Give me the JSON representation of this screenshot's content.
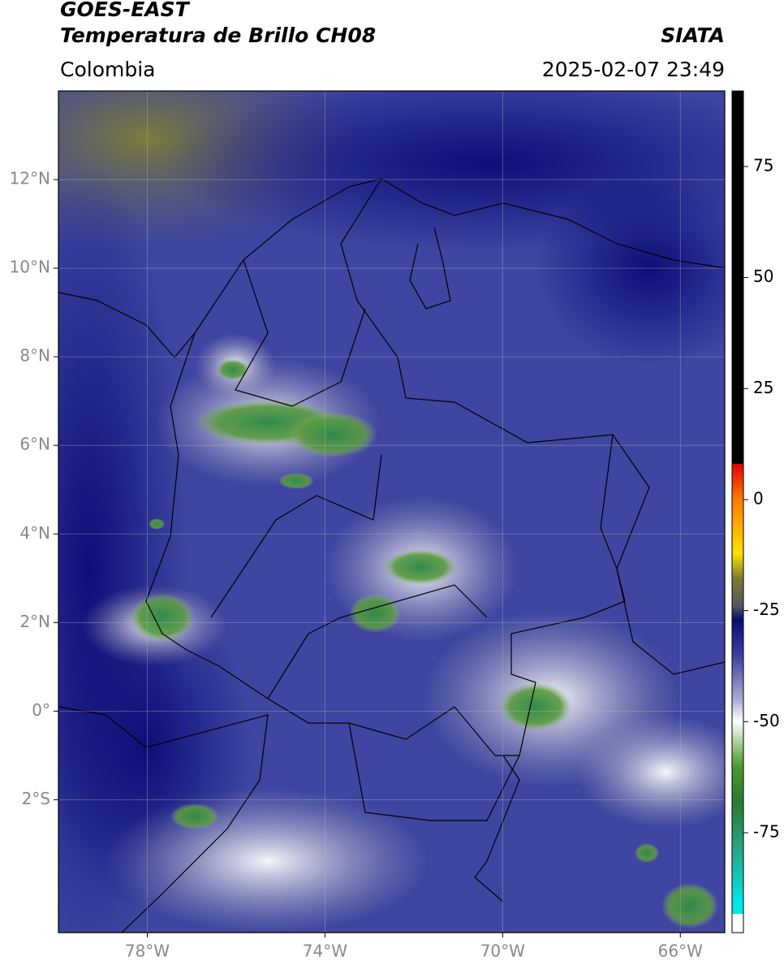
{
  "header": {
    "title_line1": "GOES-EAST",
    "title_line2": "Temperatura de Brillo CH08",
    "source": "SIATA",
    "region": "Colombia",
    "timestamp": "2025-02-07 23:49"
  },
  "map": {
    "lon_range": [
      -80,
      -65
    ],
    "lat_range": [
      -5,
      14
    ],
    "lon_ticks": [
      {
        "value": -78,
        "label": "78°W"
      },
      {
        "value": -74,
        "label": "74°W"
      },
      {
        "value": -70,
        "label": "70°W"
      },
      {
        "value": -66,
        "label": "66°W"
      }
    ],
    "lat_ticks": [
      {
        "value": -2,
        "label": "2°S"
      },
      {
        "value": 0,
        "label": "0°"
      },
      {
        "value": 2,
        "label": "2°N"
      },
      {
        "value": 4,
        "label": "4°N"
      },
      {
        "value": 6,
        "label": "6°N"
      },
      {
        "value": 8,
        "label": "8°N"
      },
      {
        "value": 10,
        "label": "10°N"
      },
      {
        "value": 12,
        "label": "12°N"
      }
    ],
    "grid": true
  },
  "colorbar": {
    "range": [
      -97.5,
      92
    ],
    "ticks": [
      -75,
      -50,
      -25,
      0,
      25,
      50,
      75
    ]
  }
}
